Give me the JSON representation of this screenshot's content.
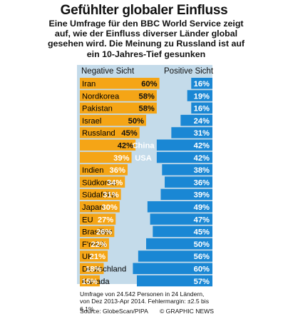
{
  "title": "Gefühlter globaler Einfluss",
  "intro": "Eine Umfrage für den BBC World Service zeigt auf, wie der Einfluss diverser Länder global gesehen wird. Die Meinung zu Russland ist auf ein 10-Jahres-Tief gesunken",
  "labels": {
    "negative": "Negative Sicht",
    "positive": "Positive Sicht"
  },
  "footnote": "Umfrage von 24.542 Personen in 24 Ländern, von Dez 2013-Apr 2014. Fehlermargin: ±2.5 bis 6.1%",
  "source": "Source: GlobeScan/PIPA",
  "brand": "© GRAPHIC NEWS",
  "colors": {
    "negative": "#f5a516",
    "positive": "#1a87d4",
    "panel": "#c4dbea"
  },
  "chart_data": {
    "type": "bar",
    "categories": [
      "Iran",
      "Nordkorea",
      "Pakistan",
      "Israel",
      "Russland",
      "China",
      "USA",
      "Indien",
      "Südkorea",
      "Südafrika",
      "Japan",
      "EU",
      "Brasilien",
      "F'reich",
      "UK",
      "Deutschland",
      "Kanada"
    ],
    "series": [
      {
        "name": "Negative Sicht",
        "values": [
          60,
          58,
          58,
          50,
          45,
          42,
          39,
          36,
          34,
          31,
          30,
          27,
          26,
          22,
          21,
          18,
          15
        ],
        "labels": [
          "60%",
          "58%",
          "58%",
          "50%",
          "45%",
          "42%",
          "39%",
          "36%",
          "34%",
          "31%",
          "30%",
          "27%",
          "26%",
          "22%",
          "21%",
          "18%",
          "15%"
        ]
      },
      {
        "name": "Positive Sicht",
        "values": [
          16,
          19,
          16,
          24,
          31,
          42,
          42,
          38,
          36,
          39,
          49,
          47,
          45,
          50,
          56,
          60,
          57
        ],
        "labels": [
          "16%",
          "19%",
          "16%",
          "24%",
          "31%",
          "42%",
          "42%",
          "38%",
          "36%",
          "39%",
          "49%",
          "47%",
          "45%",
          "50%",
          "56%",
          "60%",
          "57%"
        ]
      }
    ],
    "xlim": [
      0,
      100
    ]
  }
}
